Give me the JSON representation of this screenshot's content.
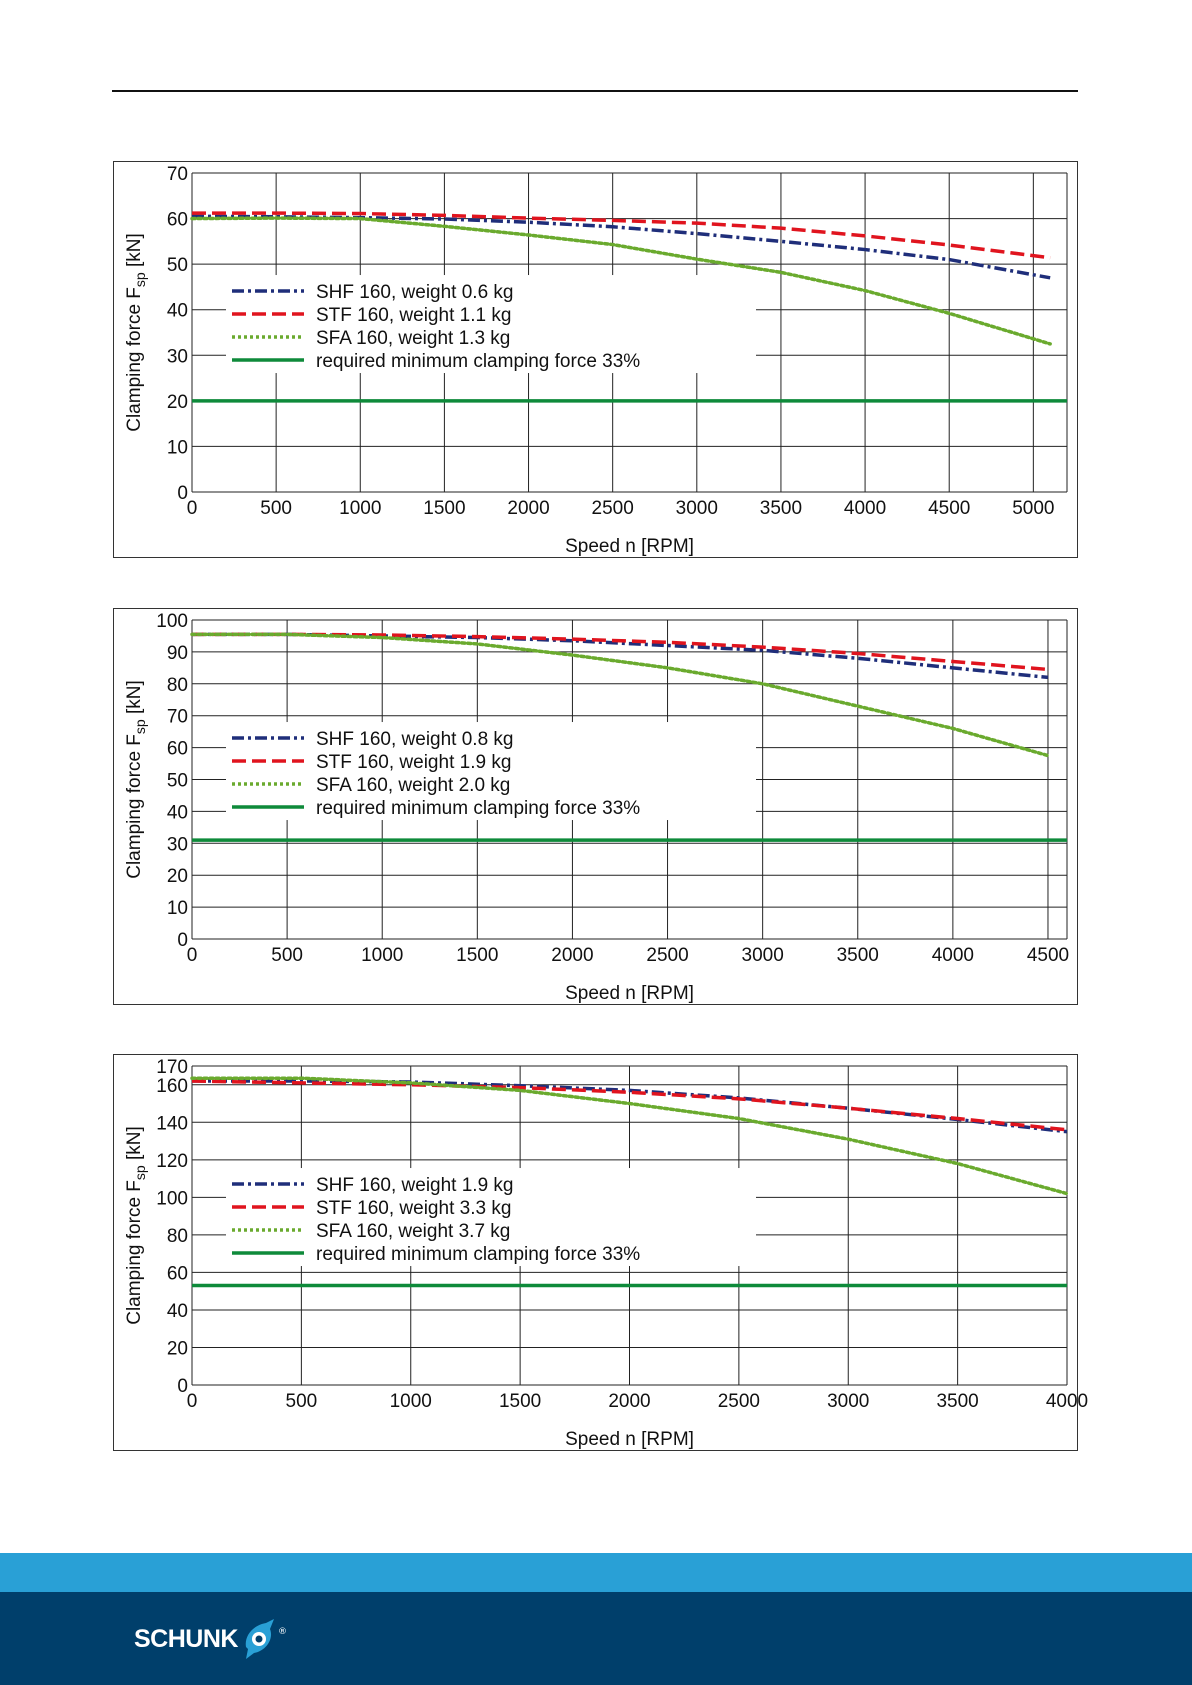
{
  "colors": {
    "SHF": "#1f2e7a",
    "STF": "#e0141e",
    "SFA": "#6aaa2e",
    "min": "#0e8a3a",
    "footer_light": "#29a0d6",
    "footer_dark": "#003f6b",
    "grid": "#222222"
  },
  "chart_data": [
    {
      "type": "line",
      "xlabel": "Speed n [RPM]",
      "ylabel": "Clamping force F",
      "ylabel_sub": "sp",
      "ylabel_unit": " [kN]",
      "xlim": [
        0,
        5200
      ],
      "ylim": [
        0,
        70
      ],
      "xticks": [
        0,
        500,
        1000,
        1500,
        2000,
        2500,
        3000,
        3500,
        4000,
        4500,
        5000
      ],
      "yticks": [
        0,
        10,
        20,
        30,
        40,
        50,
        60,
        70
      ],
      "legend_position": "center-left",
      "series": [
        {
          "name": "SHF 160, weight 0.6 kg",
          "style": "dashdot",
          "color": "SHF",
          "x": [
            0,
            500,
            1000,
            1500,
            2000,
            2500,
            3000,
            3500,
            4000,
            4500,
            5100
          ],
          "y": [
            60.5,
            60.4,
            60.2,
            59.9,
            59.2,
            58.2,
            56.7,
            55.0,
            53.2,
            51.0,
            47.0
          ]
        },
        {
          "name": "STF 160, weight 1.1 kg",
          "style": "dash",
          "color": "STF",
          "x": [
            0,
            500,
            1000,
            1500,
            2000,
            2500,
            3000,
            3500,
            4000,
            4500,
            5100
          ],
          "y": [
            61.2,
            61.2,
            61.1,
            60.7,
            60.1,
            59.6,
            59.0,
            57.9,
            56.2,
            54.2,
            51.4
          ]
        },
        {
          "name": "SFA 160, weight 1.3 kg",
          "style": "dot",
          "color": "SFA",
          "x": [
            0,
            500,
            1000,
            1500,
            2000,
            2500,
            3000,
            3500,
            4000,
            4500,
            5100
          ],
          "y": [
            60.0,
            60.1,
            60.0,
            58.3,
            56.4,
            54.3,
            51.1,
            48.2,
            44.2,
            39.2,
            32.5
          ]
        },
        {
          "name": "required minimum clamping force 33%",
          "style": "solid",
          "color": "min",
          "x": [
            0,
            5200
          ],
          "y": [
            20,
            20
          ]
        }
      ]
    },
    {
      "type": "line",
      "xlabel": "Speed n [RPM]",
      "ylabel": "Clamping force F",
      "ylabel_sub": "sp",
      "ylabel_unit": " [kN]",
      "xlim": [
        0,
        4600
      ],
      "ylim": [
        0,
        100
      ],
      "xticks": [
        0,
        500,
        1000,
        1500,
        2000,
        2500,
        3000,
        3500,
        4000,
        4500
      ],
      "yticks": [
        0,
        10,
        20,
        30,
        40,
        50,
        60,
        70,
        80,
        90,
        100
      ],
      "legend_position": "center-left",
      "series": [
        {
          "name": "SHF 160, weight 0.8 kg",
          "style": "dashdot",
          "color": "SHF",
          "x": [
            0,
            500,
            1000,
            1500,
            2000,
            2500,
            3000,
            3500,
            4000,
            4500
          ],
          "y": [
            95.5,
            95.5,
            95.0,
            94.5,
            93.5,
            92.0,
            90.5,
            88.0,
            85.0,
            82.0
          ]
        },
        {
          "name": "STF 160, weight 1.9 kg",
          "style": "dash",
          "color": "STF",
          "x": [
            0,
            500,
            1000,
            1500,
            2000,
            2500,
            3000,
            3500,
            4000,
            4500
          ],
          "y": [
            95.5,
            95.5,
            95.3,
            94.8,
            94.0,
            93.0,
            91.5,
            89.5,
            87.0,
            84.5
          ]
        },
        {
          "name": "SFA 160, weight 2.0 kg",
          "style": "dot",
          "color": "SFA",
          "x": [
            0,
            500,
            1000,
            1500,
            2000,
            2500,
            3000,
            3500,
            4000,
            4500
          ],
          "y": [
            95.5,
            95.5,
            94.5,
            92.5,
            89.0,
            85.0,
            80.0,
            73.0,
            66.0,
            57.5
          ]
        },
        {
          "name": "required minimum clamping force 33%",
          "style": "solid",
          "color": "min",
          "x": [
            0,
            4600
          ],
          "y": [
            31,
            31
          ]
        }
      ]
    },
    {
      "type": "line",
      "xlabel": "Speed n [RPM]",
      "ylabel": "Clamping force F",
      "ylabel_sub": "sp",
      "ylabel_unit": " [kN]",
      "xlim": [
        0,
        4000
      ],
      "ylim": [
        0,
        170
      ],
      "xticks": [
        0,
        500,
        1000,
        1500,
        2000,
        2500,
        3000,
        3500,
        4000
      ],
      "yticks": [
        0,
        20,
        40,
        60,
        80,
        100,
        120,
        140,
        160,
        170
      ],
      "legend_position": "center-left",
      "series": [
        {
          "name": "SHF 160, weight 1.9 kg",
          "style": "dashdot",
          "color": "SHF",
          "x": [
            0,
            500,
            1000,
            1500,
            2000,
            2500,
            3000,
            3500,
            4000
          ],
          "y": [
            162,
            162,
            161.5,
            159.5,
            157,
            153,
            147.5,
            141.5,
            135
          ]
        },
        {
          "name": "STF 160, weight 3.3 kg",
          "style": "dash",
          "color": "STF",
          "x": [
            0,
            500,
            1000,
            1500,
            2000,
            2500,
            3000,
            3500,
            4000
          ],
          "y": [
            162,
            161,
            160,
            158.5,
            156,
            152.5,
            147.5,
            142,
            136
          ]
        },
        {
          "name": "SFA 160, weight 3.7 kg",
          "style": "dot",
          "color": "SFA",
          "x": [
            0,
            500,
            1000,
            1500,
            2000,
            2500,
            3000,
            3500,
            4000
          ],
          "y": [
            163.5,
            163.5,
            161,
            157,
            150,
            142,
            131,
            118,
            102
          ]
        },
        {
          "name": "required minimum clamping force 33%",
          "style": "solid",
          "color": "min",
          "x": [
            0,
            4000
          ],
          "y": [
            53,
            53
          ]
        }
      ]
    }
  ],
  "footer": {
    "brand": "SCHUNK",
    "registered": "®"
  }
}
